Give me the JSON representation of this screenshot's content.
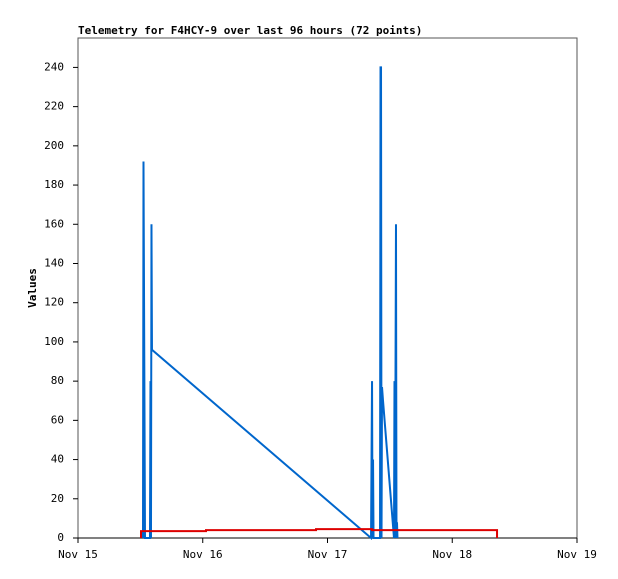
{
  "chart_data": {
    "type": "line",
    "title": "Telemetry for F4HCY-9 over last 96 hours (72 points)",
    "y_label": "Values",
    "xlim": [
      0,
      4
    ],
    "xticks": [
      {
        "value": 0,
        "label": "Nov 15"
      },
      {
        "value": 1,
        "label": "Nov 16"
      },
      {
        "value": 2,
        "label": "Nov 17"
      },
      {
        "value": 3,
        "label": "Nov 18"
      },
      {
        "value": 4,
        "label": "Nov 19"
      }
    ],
    "ylim": [
      0,
      255
    ],
    "yticks": [
      0,
      20,
      40,
      60,
      80,
      100,
      120,
      140,
      160,
      180,
      200,
      220,
      240
    ],
    "series": [
      {
        "color": "#0066cc",
        "x": [
          0.521,
          0.525,
          0.537,
          0.577,
          0.581,
          0.585,
          0.589,
          0.593,
          2.349,
          2.357,
          2.361,
          2.365,
          2.369,
          2.421,
          2.425,
          2.429,
          2.433,
          2.437,
          2.445,
          2.533,
          2.537,
          2.541,
          2.549,
          2.553,
          2.557,
          2.561
        ],
        "values": [
          0,
          192,
          0,
          0,
          80,
          0,
          160,
          96,
          0,
          80,
          0,
          40,
          0,
          0,
          240,
          240,
          0,
          77,
          70,
          0,
          80,
          0,
          160,
          0,
          8,
          0
        ]
      },
      {
        "color": "#dd0000",
        "x": [
          0.505,
          0.505,
          1.026,
          1.026,
          1.908,
          1.908,
          2.357,
          2.357,
          3.359,
          3.359
        ],
        "values": [
          0,
          3.5,
          3.5,
          4,
          4,
          4.5,
          4.5,
          4,
          4,
          0
        ]
      }
    ]
  }
}
